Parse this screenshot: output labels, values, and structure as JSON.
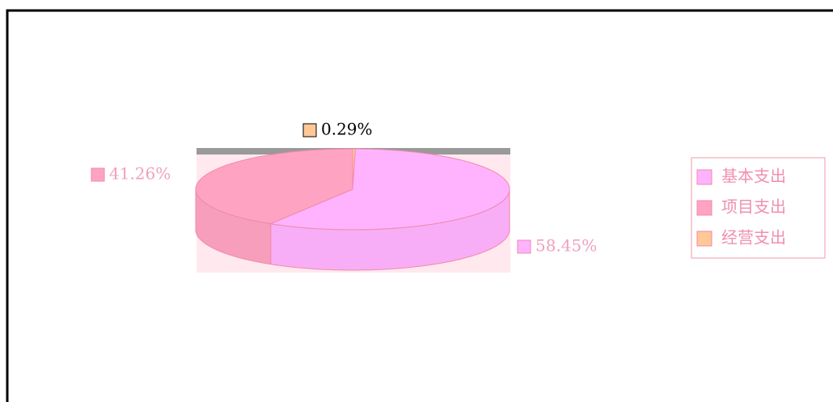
{
  "chart_data": {
    "type": "pie",
    "categories": [
      "基本支出",
      "项目支出",
      "经营支出"
    ],
    "values": [
      58.45,
      41.26,
      0.29
    ],
    "value_labels": [
      "58.45%",
      "41.26%",
      "0.29%"
    ],
    "colors": [
      "#ffb3ff",
      "#ffa3c3",
      "#ffc896"
    ],
    "legend": "right"
  }
}
